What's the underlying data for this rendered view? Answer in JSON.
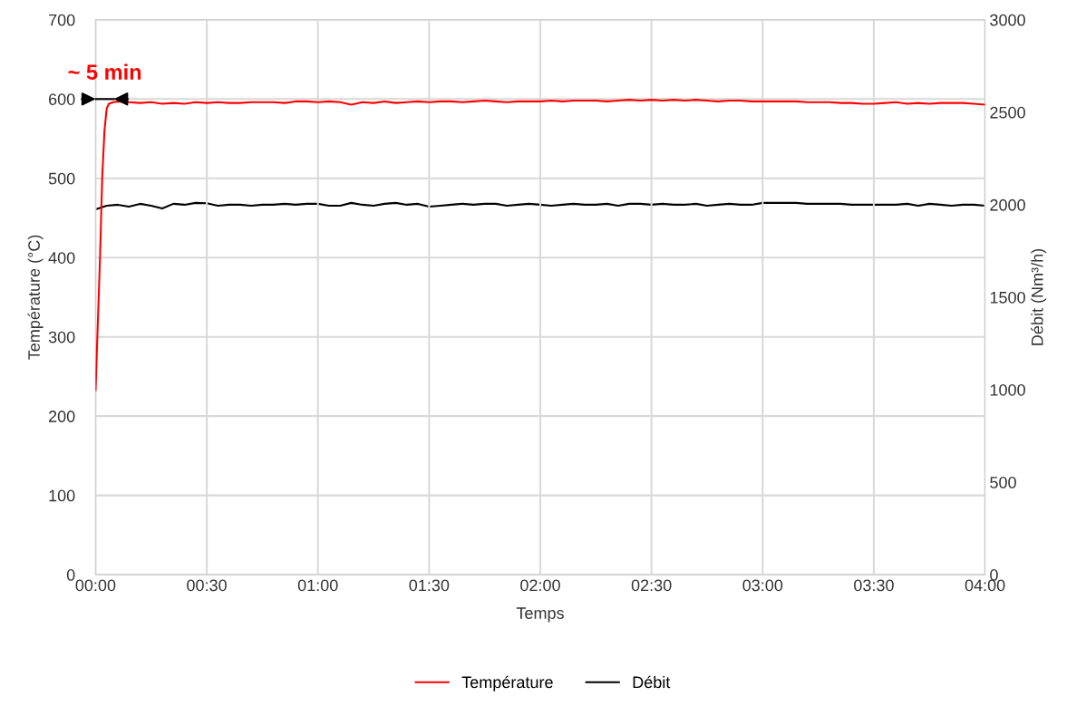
{
  "chart_data": {
    "type": "line",
    "xlabel": "Temps",
    "ylabel": "Température (°C)",
    "y2label": "Débit (Nm³/h)",
    "xlim": [
      0,
      4
    ],
    "xticks": [
      {
        "value": 0,
        "label": "00:00"
      },
      {
        "value": 0.5,
        "label": "00:30"
      },
      {
        "value": 1,
        "label": "01:00"
      },
      {
        "value": 1.5,
        "label": "01:30"
      },
      {
        "value": 2,
        "label": "02:00"
      },
      {
        "value": 2.5,
        "label": "02:30"
      },
      {
        "value": 3,
        "label": "03:00"
      },
      {
        "value": 3.5,
        "label": "03:30"
      },
      {
        "value": 4,
        "label": "04:00"
      }
    ],
    "ylim": [
      0,
      700
    ],
    "yticks": [
      0,
      100,
      200,
      300,
      400,
      500,
      600,
      700
    ],
    "y2lim": [
      0,
      3000
    ],
    "y2ticks": [
      0,
      500,
      1000,
      1500,
      2000,
      2500,
      3000
    ],
    "grid": true,
    "legend": "bottom",
    "marker": "none",
    "line_style": "solid",
    "annotations": [
      {
        "text": "~ 5 min",
        "x": 0.083,
        "y": 600
      }
    ],
    "series": [
      {
        "name": "Température",
        "color": "#ff0000",
        "x": [
          0,
          0.02,
          0.03,
          0.04,
          0.05,
          0.06,
          0.08,
          0.1,
          0.15,
          0.2,
          0.25,
          0.3,
          0.35,
          0.4,
          0.45,
          0.5,
          0.55,
          0.6,
          0.65,
          0.7,
          0.75,
          0.8,
          0.85,
          0.9,
          0.95,
          1.0,
          1.05,
          1.1,
          1.15,
          1.2,
          1.25,
          1.3,
          1.35,
          1.4,
          1.45,
          1.5,
          1.55,
          1.6,
          1.65,
          1.7,
          1.75,
          1.8,
          1.85,
          1.9,
          1.95,
          2.0,
          2.05,
          2.1,
          2.15,
          2.2,
          2.25,
          2.3,
          2.35,
          2.4,
          2.45,
          2.5,
          2.55,
          2.6,
          2.65,
          2.7,
          2.75,
          2.8,
          2.85,
          2.9,
          2.95,
          3.0,
          3.05,
          3.1,
          3.15,
          3.2,
          3.25,
          3.3,
          3.35,
          3.4,
          3.45,
          3.5,
          3.55,
          3.6,
          3.65,
          3.7,
          3.75,
          3.8,
          3.85,
          3.9,
          3.95,
          4.0
        ],
        "values": [
          233,
          400,
          502,
          560,
          588,
          594,
          596,
          597,
          596,
          595,
          596,
          594,
          595,
          594,
          596,
          595,
          596,
          595,
          595,
          596,
          596,
          596,
          595,
          597,
          597,
          596,
          597,
          596,
          593,
          596,
          595,
          597,
          595,
          596,
          597,
          596,
          597,
          597,
          596,
          597,
          598,
          597,
          596,
          597,
          597,
          597,
          598,
          597,
          598,
          598,
          598,
          597,
          598,
          599,
          598,
          599,
          598,
          599,
          598,
          599,
          598,
          597,
          598,
          598,
          597,
          597,
          597,
          597,
          597,
          596,
          596,
          596,
          595,
          595,
          594,
          594,
          595,
          596,
          594,
          595,
          594,
          595,
          595,
          595,
          594,
          593
        ]
      },
      {
        "name": "Débit",
        "color": "#000000",
        "axis": "y2",
        "x": [
          0,
          0.05,
          0.1,
          0.15,
          0.2,
          0.25,
          0.3,
          0.35,
          0.4,
          0.45,
          0.5,
          0.55,
          0.6,
          0.65,
          0.7,
          0.75,
          0.8,
          0.85,
          0.9,
          0.95,
          1.0,
          1.05,
          1.1,
          1.15,
          1.2,
          1.25,
          1.3,
          1.35,
          1.4,
          1.45,
          1.5,
          1.55,
          1.6,
          1.65,
          1.7,
          1.75,
          1.8,
          1.85,
          1.9,
          1.95,
          2.0,
          2.05,
          2.1,
          2.15,
          2.2,
          2.25,
          2.3,
          2.35,
          2.4,
          2.45,
          2.5,
          2.55,
          2.6,
          2.65,
          2.7,
          2.75,
          2.8,
          2.85,
          2.9,
          2.95,
          3.0,
          3.05,
          3.1,
          3.15,
          3.2,
          3.25,
          3.3,
          3.35,
          3.4,
          3.45,
          3.5,
          3.55,
          3.6,
          3.65,
          3.7,
          3.75,
          3.8,
          3.85,
          3.9,
          3.95,
          4.0
        ],
        "values": [
          1975,
          1995,
          2000,
          1990,
          2005,
          1995,
          1980,
          2005,
          2000,
          2010,
          2008,
          1995,
          2000,
          2000,
          1995,
          2000,
          2000,
          2005,
          2000,
          2005,
          2005,
          1995,
          1995,
          2010,
          2000,
          1995,
          2005,
          2010,
          2000,
          2005,
          1990,
          1995,
          2000,
          2005,
          2000,
          2005,
          2005,
          1995,
          2000,
          2005,
          2000,
          1995,
          2000,
          2005,
          2000,
          2000,
          2005,
          1995,
          2005,
          2005,
          2000,
          2005,
          2000,
          2000,
          2005,
          1995,
          2000,
          2005,
          2000,
          2000,
          2010,
          2010,
          2010,
          2010,
          2005,
          2005,
          2005,
          2005,
          2000,
          2000,
          2000,
          2000,
          2000,
          2005,
          1995,
          2005,
          2000,
          1995,
          2000,
          2000,
          1995
        ]
      }
    ]
  }
}
